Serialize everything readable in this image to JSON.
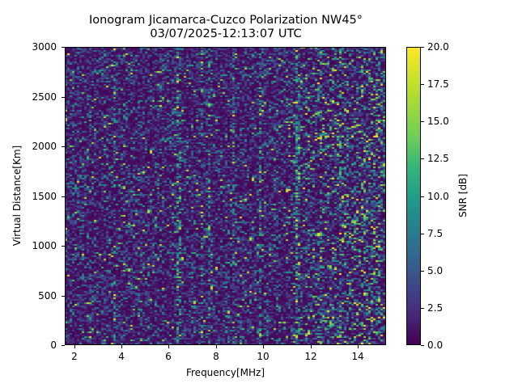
{
  "chart_data": {
    "type": "heatmap",
    "title": "Ionogram Jicamarca-Cuzco Polarization NW45°",
    "subtitle": "03/07/2025-12:13:07 UTC",
    "xlabel": "Frequency[MHz]",
    "ylabel": "Virtual Distance[Km]",
    "xlim": [
      1.6,
      15.2
    ],
    "ylim": [
      0,
      3000
    ],
    "x_ticks": [
      2,
      4,
      6,
      8,
      10,
      12,
      14
    ],
    "y_ticks": [
      0,
      500,
      1000,
      1500,
      2000,
      2500,
      3000
    ],
    "colorbar": {
      "label": "SNR [dB]",
      "colormap": "viridis",
      "range": [
        0.0,
        20.0
      ],
      "ticks": [
        "0.0",
        "2.5",
        "5.0",
        "7.5",
        "10.0",
        "12.5",
        "15.0",
        "17.5",
        "20.0"
      ]
    },
    "grid": false,
    "description": "Noise-dominated ionogram; mostly low SNR (0-5 dB) with scattered vertical streaks of higher SNR (10-20 dB), more frequent at higher frequencies (10-15 MHz)."
  },
  "colors": {
    "low": "#440154",
    "mid": "#21918c",
    "high": "#fde725"
  }
}
